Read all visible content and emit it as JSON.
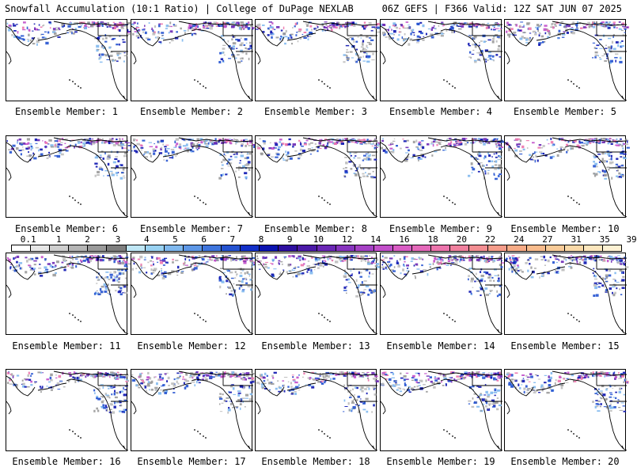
{
  "header": {
    "left_title": "Snowfall Accumulation (10:1 Ratio) | College of DuPage NEXLAB",
    "right_title": "06Z GEFS | F366 Valid: 12Z SAT JUN 07 2025"
  },
  "panels": [
    {
      "member": 1,
      "label": "Ensemble Member: 1"
    },
    {
      "member": 2,
      "label": "Ensemble Member: 2"
    },
    {
      "member": 3,
      "label": "Ensemble Member: 3"
    },
    {
      "member": 4,
      "label": "Ensemble Member: 4"
    },
    {
      "member": 5,
      "label": "Ensemble Member: 5"
    },
    {
      "member": 6,
      "label": "Ensemble Member: 6"
    },
    {
      "member": 7,
      "label": "Ensemble Member: 7"
    },
    {
      "member": 8,
      "label": "Ensemble Member: 8"
    },
    {
      "member": 9,
      "label": "Ensemble Member: 9"
    },
    {
      "member": 10,
      "label": "Ensemble Member: 10"
    },
    {
      "member": 11,
      "label": "Ensemble Member: 11"
    },
    {
      "member": 12,
      "label": "Ensemble Member: 12"
    },
    {
      "member": 13,
      "label": "Ensemble Member: 13"
    },
    {
      "member": 14,
      "label": "Ensemble Member: 14"
    },
    {
      "member": 15,
      "label": "Ensemble Member: 15"
    },
    {
      "member": 16,
      "label": "Ensemble Member: 16"
    },
    {
      "member": 17,
      "label": "Ensemble Member: 17"
    },
    {
      "member": 18,
      "label": "Ensemble Member: 18"
    },
    {
      "member": 19,
      "label": "Ensemble Member: 19"
    },
    {
      "member": 20,
      "label": "Ensemble Member: 20"
    }
  ],
  "colorbar": {
    "labels": [
      "0.1",
      "1",
      "2",
      "3",
      "4",
      "5",
      "6",
      "7",
      "8",
      "9",
      "10",
      "12",
      "14",
      "16",
      "18",
      "20",
      "22",
      "24",
      "27",
      "31",
      "35",
      "39"
    ],
    "colors": [
      "#ffffff",
      "#e6e6e6",
      "#cfcfcf",
      "#b5b5b5",
      "#9a9a9a",
      "#7e7e7e",
      "#bfe6f5",
      "#99d2f2",
      "#7fb8ee",
      "#5d97e6",
      "#3f75dd",
      "#2452d0",
      "#1230c8",
      "#0b13b0",
      "#2e0fa0",
      "#4b1aa8",
      "#6a27b5",
      "#8734bf",
      "#a541c5",
      "#c24fca",
      "#d95cc4",
      "#e469ba",
      "#ec74ac",
      "#f0809e",
      "#f38e92",
      "#f59c8a",
      "#f7ab86",
      "#f8bb8c",
      "#f9cb98",
      "#fad9a8",
      "#fce6bd",
      "#fdf1d3"
    ]
  },
  "map": {
    "land_outline_color": "#000000",
    "snow_colors": [
      "#9a9a9a",
      "#bdbdbd",
      "#7fb8ee",
      "#2452d0",
      "#0b13b0",
      "#6a27b5",
      "#c24fca",
      "#ec74ac"
    ]
  }
}
